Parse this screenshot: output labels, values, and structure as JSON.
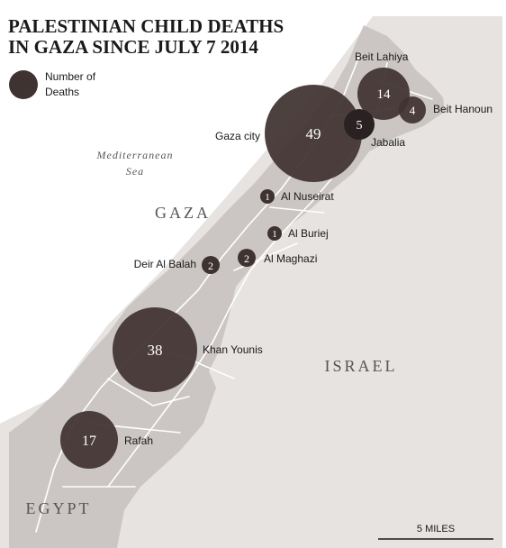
{
  "title_line1": "PALESTINIAN CHILD DEATHS",
  "title_line2": "IN GAZA SINCE JULY 7 2014",
  "legend": {
    "label_line1": "Number of",
    "label_line2": "Deaths"
  },
  "regions": {
    "sea_line1": "Mediterranean",
    "sea_line2": "Sea",
    "gaza": "GAZA",
    "israel": "ISRAEL",
    "egypt": "EGYPT"
  },
  "scale_label": "5 MILES",
  "colors": {
    "land": "#e6e3e1",
    "gaza_strip": "#cbc6c3",
    "roads": "#ffffff",
    "bubble": "#3f3332",
    "bubble_dark": "#2a2222",
    "text": "#1a1a1a"
  },
  "locations": [
    {
      "name": "Beit Lahiya",
      "deaths": 14
    },
    {
      "name": "Beit Hanoun",
      "deaths": 4
    },
    {
      "name": "Gaza city",
      "deaths": 49
    },
    {
      "name": "Jabalia",
      "deaths": 5
    },
    {
      "name": "Al Nuseirat",
      "deaths": 1
    },
    {
      "name": "Al Buriej",
      "deaths": 1
    },
    {
      "name": "Al Maghazi",
      "deaths": 2
    },
    {
      "name": "Deir Al Balah",
      "deaths": 2
    },
    {
      "name": "Khan Younis",
      "deaths": 38
    },
    {
      "name": "Rafah",
      "deaths": 17
    }
  ]
}
